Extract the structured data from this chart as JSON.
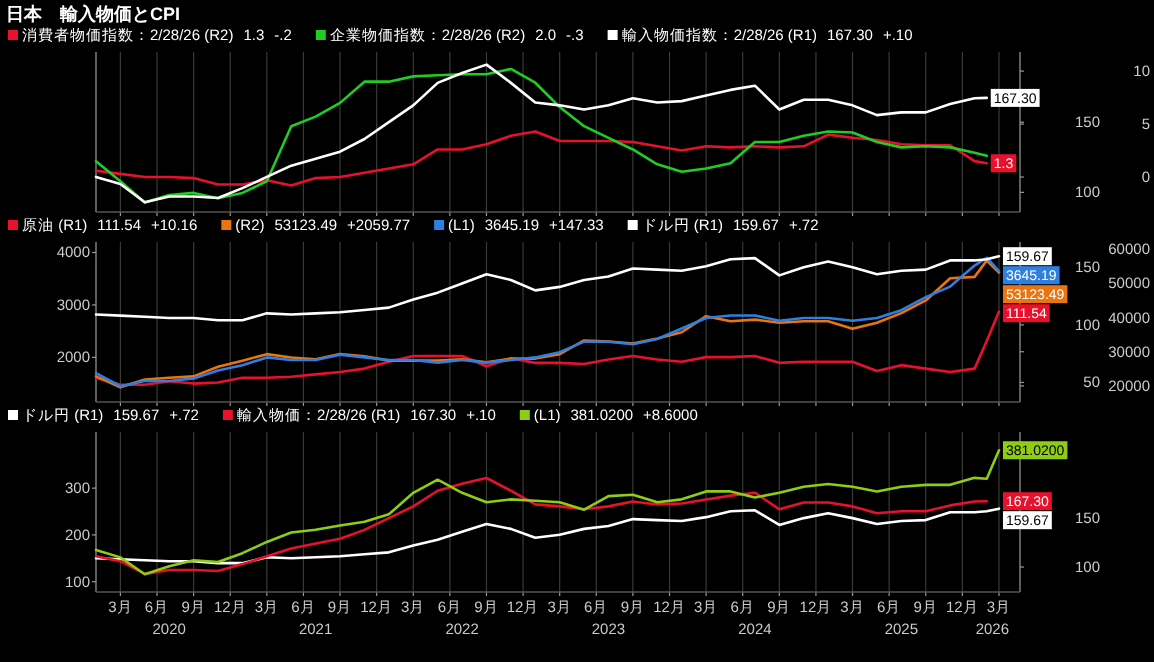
{
  "chart_data": [
    {
      "type": "line",
      "title": "日本　輸入物価とCPI",
      "legend": "top",
      "grid": "x",
      "tick_labels": "y",
      "xlim": [
        "2020-01",
        "2026-04-23"
      ],
      "xticks": [
        {
          "value": "2020-03",
          "label": null
        },
        {
          "value": "2020-06",
          "label": null
        },
        {
          "value": "2020-09",
          "label": null
        },
        {
          "value": "2020-12",
          "label": null
        },
        {
          "value": "2021-03",
          "label": null
        },
        {
          "value": "2021-06",
          "label": null
        },
        {
          "value": "2021-09",
          "label": null
        },
        {
          "value": "2021-12",
          "label": null
        },
        {
          "value": "2022-03",
          "label": null
        },
        {
          "value": "2022-06",
          "label": null
        },
        {
          "value": "2022-09",
          "label": null
        },
        {
          "value": "2022-12",
          "label": null
        },
        {
          "value": "2023-03",
          "label": null
        },
        {
          "value": "2023-06",
          "label": null
        },
        {
          "value": "2023-09",
          "label": null
        },
        {
          "value": "2023-12",
          "label": null
        },
        {
          "value": "2024-03",
          "label": null
        },
        {
          "value": "2024-06",
          "label": null
        },
        {
          "value": "2024-09",
          "label": null
        },
        {
          "value": "2024-12",
          "label": null
        },
        {
          "value": "2025-03",
          "label": null
        },
        {
          "value": "2025-06",
          "label": null
        },
        {
          "value": "2025-09",
          "label": null
        },
        {
          "value": "2025-12",
          "label": null
        },
        {
          "value": "2026-03",
          "label": null
        }
      ],
      "ylim": [
        86,
        200
      ],
      "yticks": [
        100,
        150
      ],
      "y2lim": [
        -3.3,
        11.8
      ],
      "y2ticks": [
        0,
        5,
        10
      ],
      "x": [
        "2020-01",
        "2020-03",
        "2020-05",
        "2020-07",
        "2020-09",
        "2020-11",
        "2021-01",
        "2021-03",
        "2021-05",
        "2021-07",
        "2021-09",
        "2021-11",
        "2022-01",
        "2022-03",
        "2022-05",
        "2022-07",
        "2022-09",
        "2022-11",
        "2023-01",
        "2023-03",
        "2023-05",
        "2023-07",
        "2023-09",
        "2023-11",
        "2024-01",
        "2024-03",
        "2024-05",
        "2024-07",
        "2024-09",
        "2024-11",
        "2025-01",
        "2025-03",
        "2025-05",
        "2025-07",
        "2025-09",
        "2025-11",
        "2026-01",
        "2026-02"
      ],
      "series": [
        {
          "name": "消費者物価指数：2/28/26 (R2)  1.3  -.2",
          "color": "#e8112d",
          "axis": "y2",
          "values": [
            0.6,
            0.3,
            0.0,
            0.0,
            -0.1,
            -0.7,
            -0.7,
            -0.3,
            -0.8,
            -0.1,
            0.0,
            0.4,
            0.8,
            1.2,
            2.6,
            2.6,
            3.1,
            3.9,
            4.3,
            3.4,
            3.4,
            3.4,
            3.3,
            2.9,
            2.5,
            2.9,
            2.8,
            2.9,
            2.8,
            2.9,
            4.0,
            3.7,
            3.5,
            3.1,
            3.0,
            3.0,
            1.5,
            1.3
          ],
          "value_labels": [
            null,
            null,
            null,
            null,
            null,
            null,
            null,
            null,
            null,
            null,
            null,
            null,
            null,
            null,
            null,
            null,
            null,
            null,
            null,
            null,
            null,
            null,
            null,
            null,
            null,
            null,
            null,
            null,
            null,
            null,
            null,
            null,
            null,
            null,
            null,
            null,
            null,
            "1.3"
          ]
        },
        {
          "name": "企業物価指数：2/28/26 (R2)  2.0  -.3",
          "color": "#22cc22",
          "axis": "y2",
          "values": [
            1.5,
            -0.4,
            -2.4,
            -1.7,
            -1.5,
            -2.0,
            -1.5,
            -0.4,
            4.8,
            5.7,
            7.0,
            9.0,
            9.0,
            9.5,
            9.6,
            9.7,
            9.7,
            10.2,
            8.9,
            6.6,
            4.8,
            3.7,
            2.6,
            1.2,
            0.5,
            0.8,
            1.3,
            3.3,
            3.3,
            3.9,
            4.3,
            4.2,
            3.3,
            2.8,
            2.9,
            2.8,
            2.3,
            2.0
          ]
        },
        {
          "name": "輸入物価指数：2/28/26 (R1)  167.30  +.10",
          "color": "#ffffff",
          "values": [
            111,
            106,
            93,
            97,
            97,
            96,
            103,
            111,
            119,
            124,
            129,
            138,
            150,
            162,
            178,
            185,
            191,
            178,
            164,
            162,
            159,
            162,
            167,
            164,
            165,
            169,
            173,
            176,
            159,
            166,
            166,
            162,
            155,
            157,
            157,
            163,
            167,
            167.3
          ],
          "value_labels": [
            null,
            null,
            null,
            null,
            null,
            null,
            null,
            null,
            null,
            null,
            null,
            null,
            null,
            null,
            null,
            null,
            null,
            null,
            null,
            null,
            null,
            null,
            null,
            null,
            null,
            null,
            null,
            null,
            null,
            null,
            null,
            null,
            null,
            null,
            null,
            null,
            null,
            "167.30"
          ]
        }
      ]
    },
    {
      "type": "line",
      "legend": "top",
      "grid": "x",
      "tick_labels": "y",
      "xlim": [
        "2020-01",
        "2026-04-23"
      ],
      "xticks": [
        {
          "value": "2020-03",
          "label": null
        },
        {
          "value": "2020-06",
          "label": null
        },
        {
          "value": "2020-09",
          "label": null
        },
        {
          "value": "2020-12",
          "label": null
        },
        {
          "value": "2021-03",
          "label": null
        },
        {
          "value": "2021-06",
          "label": null
        },
        {
          "value": "2021-09",
          "label": null
        },
        {
          "value": "2021-12",
          "label": null
        },
        {
          "value": "2022-03",
          "label": null
        },
        {
          "value": "2022-06",
          "label": null
        },
        {
          "value": "2022-09",
          "label": null
        },
        {
          "value": "2022-12",
          "label": null
        },
        {
          "value": "2023-03",
          "label": null
        },
        {
          "value": "2023-06",
          "label": null
        },
        {
          "value": "2023-09",
          "label": null
        },
        {
          "value": "2023-12",
          "label": null
        },
        {
          "value": "2024-03",
          "label": null
        },
        {
          "value": "2024-06",
          "label": null
        },
        {
          "value": "2024-09",
          "label": null
        },
        {
          "value": "2024-12",
          "label": null
        },
        {
          "value": "2025-03",
          "label": null
        },
        {
          "value": "2025-06",
          "label": null
        },
        {
          "value": "2025-09",
          "label": null
        },
        {
          "value": "2025-12",
          "label": null
        },
        {
          "value": "2026-03",
          "label": null
        }
      ],
      "ylim": [
        1150,
        4200
      ],
      "yticks": [
        2000,
        3000,
        4000
      ],
      "y2lim": [
        33,
        172
      ],
      "y2ticks": [
        50,
        100,
        150
      ],
      "y3lim": [
        15300,
        62100
      ],
      "y3ticks": [
        20000,
        30000,
        40000,
        50000,
        60000
      ],
      "x": [
        "2020-01",
        "2020-03",
        "2020-05",
        "2020-07",
        "2020-09",
        "2020-11",
        "2021-01",
        "2021-03",
        "2021-05",
        "2021-07",
        "2021-09",
        "2021-11",
        "2022-01",
        "2022-03",
        "2022-05",
        "2022-07",
        "2022-09",
        "2022-11",
        "2023-01",
        "2023-03",
        "2023-05",
        "2023-07",
        "2023-09",
        "2023-11",
        "2024-01",
        "2024-03",
        "2024-05",
        "2024-07",
        "2024-09",
        "2024-11",
        "2025-01",
        "2025-03",
        "2025-05",
        "2025-07",
        "2025-09",
        "2025-11",
        "2026-01",
        "2026-02",
        "2026-03"
      ],
      "series": [
        {
          "name": "原油 (R1)  111.54  +10.16",
          "color": "#e8112d",
          "axis": "y2",
          "values": [
            54,
            48,
            48,
            51,
            49,
            50,
            54,
            54,
            55,
            57,
            59,
            62,
            68,
            73,
            73,
            73,
            64,
            71,
            67,
            67,
            66,
            70,
            73,
            70,
            68,
            72,
            72,
            73,
            67,
            68,
            68,
            68,
            60,
            65,
            62,
            59,
            62,
            86,
            111.54
          ],
          "value_labels": [
            null,
            null,
            null,
            null,
            null,
            null,
            null,
            null,
            null,
            null,
            null,
            null,
            null,
            null,
            null,
            null,
            null,
            null,
            null,
            null,
            null,
            null,
            null,
            null,
            null,
            null,
            null,
            null,
            null,
            null,
            null,
            null,
            null,
            null,
            null,
            null,
            null,
            null,
            "111.54"
          ]
        },
        {
          "name": "(R2)  53123.49  +2059.77",
          "color": "#e87511",
          "axis": "y3",
          "values": [
            22800,
            19600,
            21900,
            22400,
            22800,
            25600,
            27400,
            29300,
            28300,
            27800,
            29300,
            28700,
            27400,
            27400,
            27400,
            27800,
            26900,
            28000,
            28000,
            29300,
            33300,
            33000,
            32400,
            33900,
            35700,
            40400,
            38900,
            39400,
            38500,
            38900,
            38900,
            36700,
            38500,
            41300,
            45000,
            51500,
            51900,
            56700,
            53123.49
          ],
          "value_labels": [
            null,
            null,
            null,
            null,
            null,
            null,
            null,
            null,
            null,
            null,
            null,
            null,
            null,
            null,
            null,
            null,
            null,
            null,
            null,
            null,
            null,
            null,
            null,
            null,
            null,
            null,
            null,
            null,
            null,
            null,
            null,
            null,
            null,
            null,
            null,
            null,
            null,
            null,
            "53123.49"
          ]
        },
        {
          "name": "(L1)  3645.19  +147.33",
          "color": "#2f7fe0",
          "values": [
            1700,
            1450,
            1550,
            1550,
            1600,
            1750,
            1850,
            2000,
            1950,
            1950,
            2050,
            2000,
            1950,
            1950,
            1900,
            1950,
            1900,
            1950,
            2000,
            2100,
            2300,
            2300,
            2250,
            2350,
            2550,
            2750,
            2800,
            2800,
            2700,
            2750,
            2750,
            2700,
            2750,
            2900,
            3150,
            3350,
            3750,
            3900,
            3645.19
          ],
          "value_labels": [
            null,
            null,
            null,
            null,
            null,
            null,
            null,
            null,
            null,
            null,
            null,
            null,
            null,
            null,
            null,
            null,
            null,
            null,
            null,
            null,
            null,
            null,
            null,
            null,
            null,
            null,
            null,
            null,
            null,
            null,
            null,
            null,
            null,
            null,
            null,
            null,
            null,
            null,
            "3645.19"
          ]
        },
        {
          "name": "ドル円 (R1)  159.67  +.72",
          "color": "#ffffff",
          "axis": "y2",
          "values": [
            109,
            108,
            107,
            106,
            106,
            104,
            104,
            110,
            109,
            110,
            111,
            113,
            115,
            122,
            128,
            136,
            144,
            139,
            130,
            133,
            139,
            142,
            149,
            148,
            147,
            151,
            157,
            158,
            143,
            150,
            155,
            150,
            144,
            147,
            148,
            156,
            156,
            157,
            159.67
          ],
          "value_labels": [
            null,
            null,
            null,
            null,
            null,
            null,
            null,
            null,
            null,
            null,
            null,
            null,
            null,
            null,
            null,
            null,
            null,
            null,
            null,
            null,
            null,
            null,
            null,
            null,
            null,
            null,
            null,
            null,
            null,
            null,
            null,
            null,
            null,
            null,
            null,
            null,
            null,
            null,
            "159.67"
          ]
        }
      ]
    },
    {
      "type": "line",
      "legend": "top",
      "grid": "x",
      "xlim": [
        "2020-01",
        "2026-04-23"
      ],
      "xticks": [
        {
          "value": "2020-03",
          "label": "3月"
        },
        {
          "value": "2020-06",
          "label": "6月"
        },
        {
          "value": "2020-09",
          "label": "9月"
        },
        {
          "value": "2020-12",
          "label": "12月"
        },
        {
          "value": "2021-03",
          "label": "3月"
        },
        {
          "value": "2021-06",
          "label": "6月"
        },
        {
          "value": "2021-09",
          "label": "9月"
        },
        {
          "value": "2021-12",
          "label": "12月"
        },
        {
          "value": "2022-03",
          "label": "3月"
        },
        {
          "value": "2022-06",
          "label": "6月"
        },
        {
          "value": "2022-09",
          "label": "9月"
        },
        {
          "value": "2022-12",
          "label": "12月"
        },
        {
          "value": "2023-03",
          "label": "3月"
        },
        {
          "value": "2023-06",
          "label": "6月"
        },
        {
          "value": "2023-09",
          "label": "9月"
        },
        {
          "value": "2023-12",
          "label": "12月"
        },
        {
          "value": "2024-03",
          "label": "3月"
        },
        {
          "value": "2024-06",
          "label": "6月"
        },
        {
          "value": "2024-09",
          "label": "9月"
        },
        {
          "value": "2024-12",
          "label": "12月"
        },
        {
          "value": "2025-03",
          "label": "3月"
        },
        {
          "value": "2025-06",
          "label": "6月"
        },
        {
          "value": "2025-09",
          "label": "9月"
        },
        {
          "value": "2025-12",
          "label": "12月"
        },
        {
          "value": "2026-03",
          "label": "3月"
        }
      ],
      "x2lim": [
        "2020-01",
        "2026-04-23"
      ],
      "x2ticks": [
        {
          "value": "2020-07",
          "label": "2020"
        },
        {
          "value": "2021-07",
          "label": "2021"
        },
        {
          "value": "2022-07",
          "label": "2022"
        },
        {
          "value": "2023-07",
          "label": "2023"
        },
        {
          "value": "2024-07",
          "label": "2024"
        },
        {
          "value": "2025-07",
          "label": "2025"
        },
        {
          "value": "2026-02-15",
          "label": "2026"
        }
      ],
      "ylim": [
        78,
        420
      ],
      "yticks": [
        100,
        200,
        300
      ],
      "y2lim": [
        74.5,
        238
      ],
      "y2ticks": [
        100,
        150
      ],
      "x": [
        "2020-01",
        "2020-03",
        "2020-05",
        "2020-07",
        "2020-09",
        "2020-11",
        "2021-01",
        "2021-03",
        "2021-05",
        "2021-07",
        "2021-09",
        "2021-11",
        "2022-01",
        "2022-03",
        "2022-05",
        "2022-07",
        "2022-09",
        "2022-11",
        "2023-01",
        "2023-03",
        "2023-05",
        "2023-07",
        "2023-09",
        "2023-11",
        "2024-01",
        "2024-03",
        "2024-05",
        "2024-07",
        "2024-09",
        "2024-11",
        "2025-01",
        "2025-03",
        "2025-05",
        "2025-07",
        "2025-09",
        "2025-11",
        "2026-01",
        "2026-02",
        "2026-03"
      ],
      "series": [
        {
          "name": "ドル円 (R1)  159.67  +.72",
          "color": "#ffffff",
          "axis": "y2",
          "values": [
            109,
            108,
            107,
            106,
            106,
            104,
            104,
            110,
            109,
            110,
            111,
            113,
            115,
            122,
            128,
            136,
            144,
            139,
            130,
            133,
            139,
            142,
            149,
            148,
            147,
            151,
            157,
            158,
            143,
            150,
            155,
            150,
            144,
            147,
            148,
            156,
            156,
            157,
            159.67
          ],
          "value_labels": [
            null,
            null,
            null,
            null,
            null,
            null,
            null,
            null,
            null,
            null,
            null,
            null,
            null,
            null,
            null,
            null,
            null,
            null,
            null,
            null,
            null,
            null,
            null,
            null,
            null,
            null,
            null,
            null,
            null,
            null,
            null,
            null,
            null,
            null,
            null,
            null,
            null,
            null,
            "159.67"
          ]
        },
        {
          "name": "輸入物価：2/28/26 (R1)  167.30  +.10",
          "color": "#e8112d",
          "axis": "y2",
          "values": [
            111,
            106,
            93,
            97,
            97,
            96,
            103,
            111,
            119,
            124,
            129,
            138,
            150,
            162,
            178,
            185,
            191,
            178,
            164,
            162,
            159,
            162,
            167,
            164,
            165,
            169,
            173,
            176,
            159,
            166,
            166,
            162,
            155,
            157,
            157,
            163,
            167,
            167.3,
            null
          ],
          "value_labels": [
            null,
            null,
            null,
            null,
            null,
            null,
            null,
            null,
            null,
            null,
            null,
            null,
            null,
            null,
            null,
            null,
            null,
            null,
            null,
            null,
            null,
            null,
            null,
            null,
            null,
            null,
            null,
            null,
            null,
            null,
            null,
            null,
            null,
            null,
            null,
            null,
            null,
            "167.30",
            null
          ]
        },
        {
          "name": "(L1)  381.0200  +8.6000",
          "color": "#8fcc14",
          "values": [
            168,
            152,
            116,
            133,
            146,
            142,
            161,
            185,
            205,
            211,
            220,
            228,
            244,
            290,
            318,
            290,
            270,
            276,
            273,
            270,
            254,
            283,
            286,
            270,
            276,
            293,
            293,
            280,
            290,
            303,
            309,
            303,
            293,
            303,
            307,
            307,
            322,
            320,
            381.02
          ],
          "value_labels": [
            null,
            null,
            null,
            null,
            null,
            null,
            null,
            null,
            null,
            null,
            null,
            null,
            null,
            null,
            null,
            null,
            null,
            null,
            null,
            null,
            null,
            null,
            null,
            null,
            null,
            null,
            null,
            null,
            null,
            null,
            null,
            null,
            null,
            null,
            null,
            null,
            null,
            null,
            "381.0200"
          ]
        }
      ]
    }
  ]
}
